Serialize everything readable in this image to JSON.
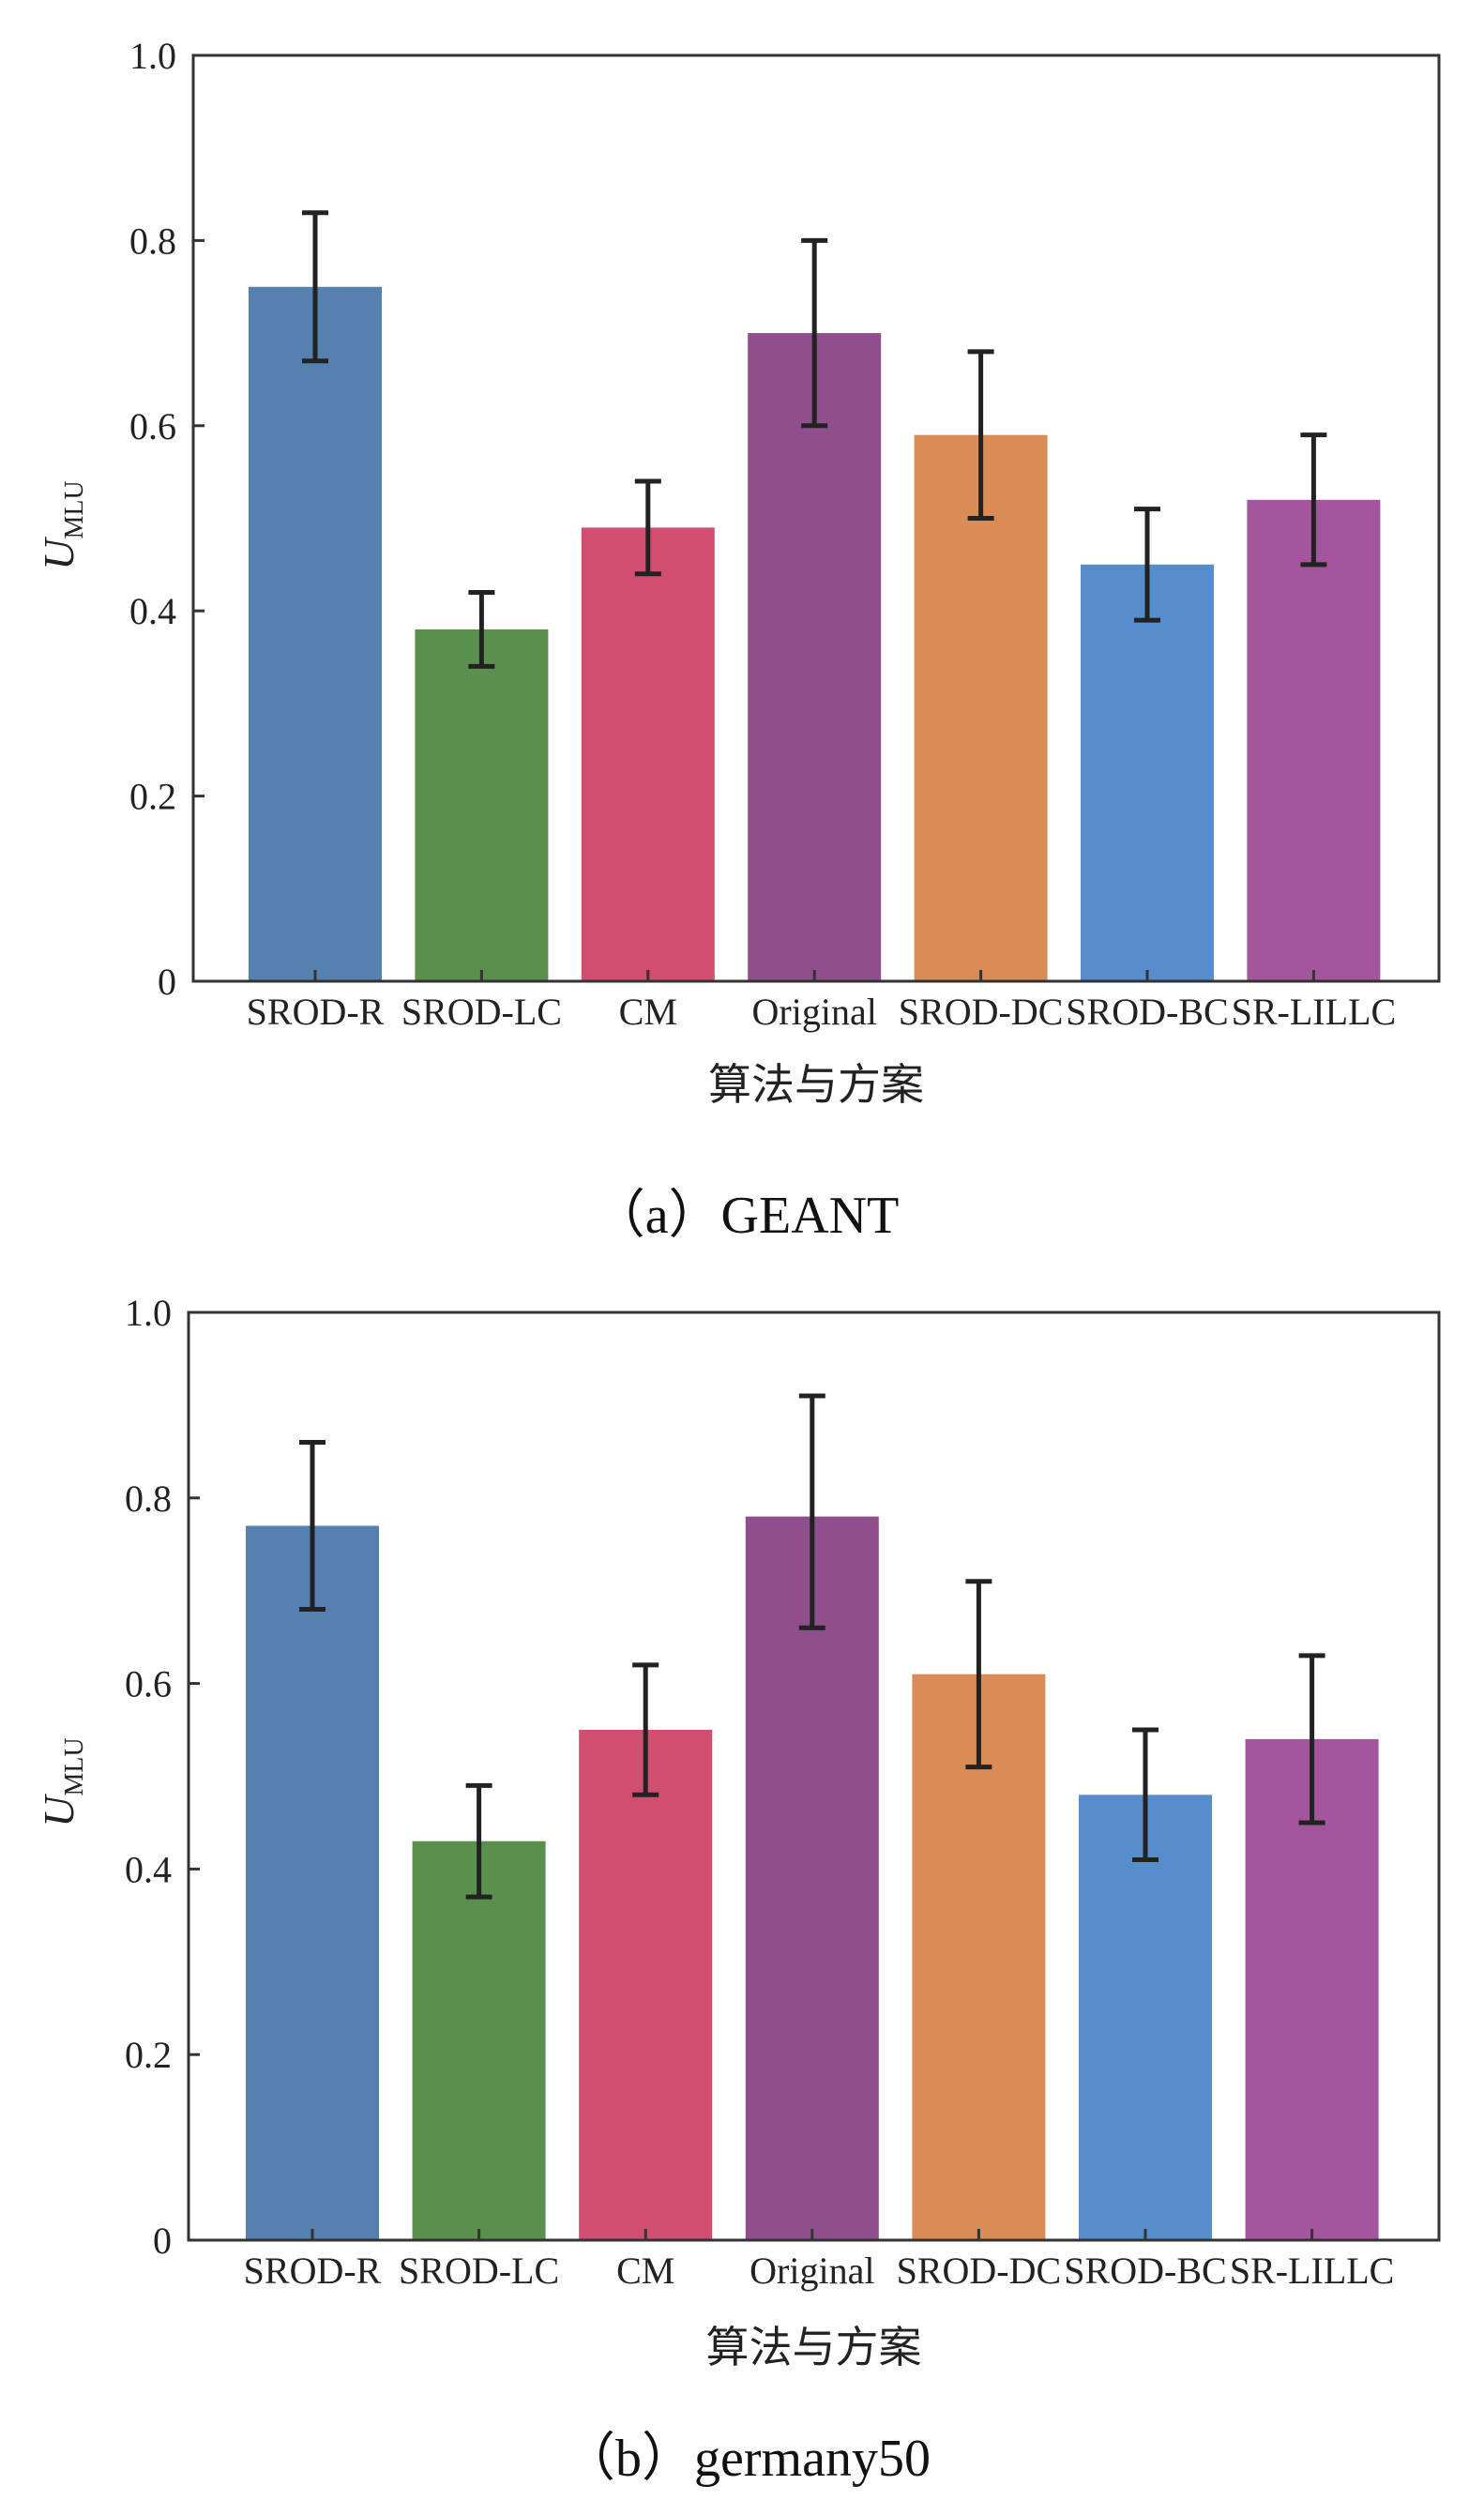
{
  "chart_data": [
    {
      "type": "bar",
      "caption": "（a）GEANT",
      "xlabel": "算法与方案",
      "ylabel": "U",
      "ylabel_subscript": "MLU",
      "ylim": [
        0,
        1.0
      ],
      "yticks": [
        "0",
        "0.2",
        "0.4",
        "0.6",
        "0.8",
        "1.0"
      ],
      "ytick_values": [
        0,
        0.2,
        0.4,
        0.6,
        0.8,
        1.0
      ],
      "grid": false,
      "categories": [
        "SROD-R",
        "SROD-LC",
        "CM",
        "Original",
        "SROD-DC",
        "SROD-BC",
        "SR-LILLC"
      ],
      "values": [
        0.75,
        0.38,
        0.49,
        0.7,
        0.59,
        0.45,
        0.52
      ],
      "error_low": [
        0.67,
        0.34,
        0.44,
        0.6,
        0.5,
        0.39,
        0.45
      ],
      "error_high": [
        0.83,
        0.42,
        0.54,
        0.8,
        0.68,
        0.51,
        0.59
      ],
      "colors": [
        "#5580b0",
        "#5a8f4e",
        "#d04f70",
        "#8f4f8c",
        "#d78d55",
        "#568dcc",
        "#a5559e"
      ]
    },
    {
      "type": "bar",
      "caption": "（b）germany50",
      "xlabel": "算法与方案",
      "ylabel": "U",
      "ylabel_subscript": "MLU",
      "ylim": [
        0,
        1.0
      ],
      "yticks": [
        "0",
        "0.2",
        "0.4",
        "0.6",
        "0.8",
        "1.0"
      ],
      "ytick_values": [
        0,
        0.2,
        0.4,
        0.6,
        0.8,
        1.0
      ],
      "grid": false,
      "categories": [
        "SROD-R",
        "SROD-LC",
        "CM",
        "Original",
        "SROD-DC",
        "SROD-BC",
        "SR-LILLC"
      ],
      "values": [
        0.77,
        0.43,
        0.55,
        0.78,
        0.61,
        0.48,
        0.54
      ],
      "error_low": [
        0.68,
        0.37,
        0.48,
        0.66,
        0.51,
        0.41,
        0.45
      ],
      "error_high": [
        0.86,
        0.49,
        0.62,
        0.91,
        0.71,
        0.55,
        0.63
      ],
      "colors": [
        "#5580b0",
        "#5a8f4e",
        "#d04f70",
        "#8f4f8c",
        "#d78d55",
        "#568dcc",
        "#a5559e"
      ]
    }
  ]
}
